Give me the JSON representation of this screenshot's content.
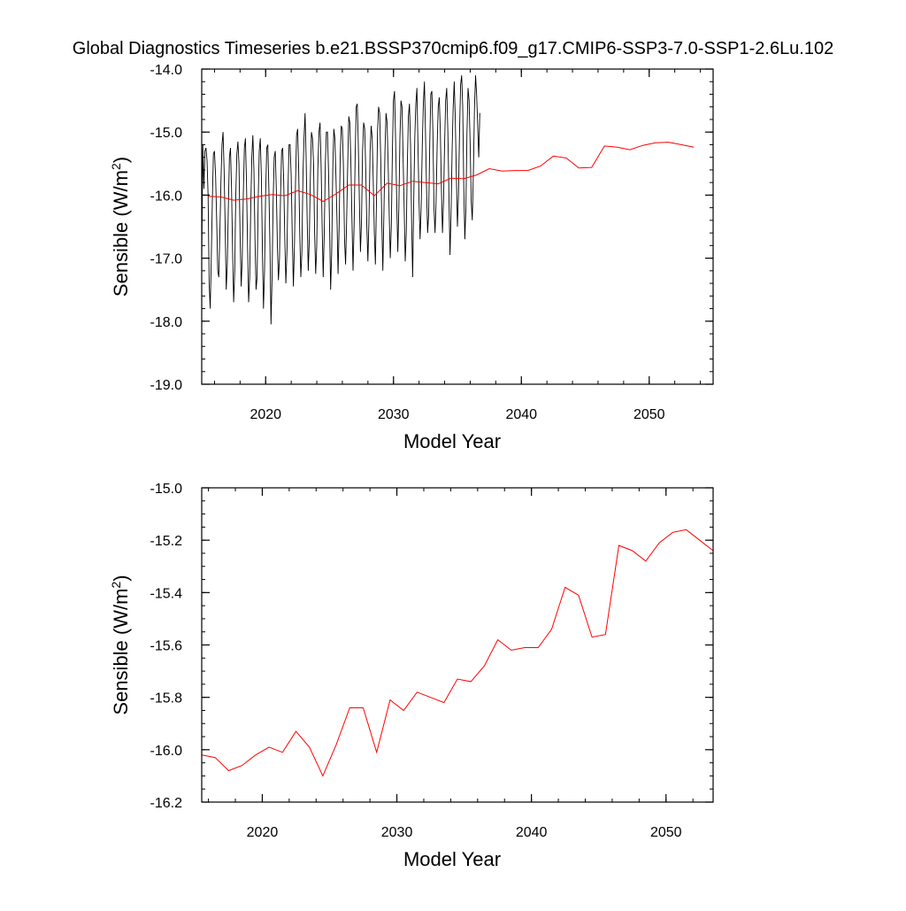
{
  "figure": {
    "title": "Global Diagnostics Timeseries b.e21.BSSP370cmip6.f09_g17.CMIP6-SSP3-7.0-SSP1-2.6Lu.102"
  },
  "colors": {
    "monthly_line": "#000000",
    "annual_line": "#ff0000",
    "axis": "#000000"
  },
  "chart_data": [
    {
      "type": "line",
      "xlabel": "Model Year",
      "ylabel": "Sensible (W/m²)",
      "ylabel_parts": {
        "main": "Sensible (W/m",
        "sup": "2",
        "end": ")"
      },
      "xlim": [
        2015,
        2055
      ],
      "ylim": [
        -19.0,
        -14.0
      ],
      "yticks": [
        -19.0,
        -18.0,
        -17.0,
        -16.0,
        -15.0,
        -14.0
      ],
      "ytick_labels": [
        "-19.0",
        "-18.0",
        "-17.0",
        "-16.0",
        "-15.0",
        "-14.0"
      ],
      "xticks": [
        2020,
        2030,
        2040,
        2050
      ],
      "xtick_labels": [
        "2020",
        "2030",
        "2040",
        "2050"
      ],
      "x_minor_step": 2,
      "y_minor_step": 0.2,
      "grid": false,
      "series": [
        {
          "kind": "monthly",
          "color": "#000000",
          "x_start": 2015.0,
          "x_step": 0.08333,
          "values": [
            -17.05,
            -15.2,
            -15.9,
            -15.3,
            -15.25,
            -15.45,
            -16.0,
            -17.4,
            -17.8,
            -17.0,
            -16.1,
            -15.35,
            -15.3,
            -15.7,
            -16.4,
            -17.2,
            -17.3,
            -16.6,
            -15.8,
            -15.2,
            -15.0,
            -15.6,
            -16.5,
            -17.5,
            -17.1,
            -16.2,
            -15.4,
            -15.25,
            -15.9,
            -16.9,
            -17.7,
            -17.2,
            -16.0,
            -15.35,
            -15.15,
            -15.5,
            -16.6,
            -17.45,
            -17.0,
            -16.0,
            -15.25,
            -15.1,
            -15.8,
            -16.8,
            -17.7,
            -17.3,
            -16.2,
            -15.4,
            -15.05,
            -15.6,
            -16.7,
            -17.5,
            -17.3,
            -16.1,
            -15.3,
            -15.1,
            -15.7,
            -16.9,
            -17.8,
            -17.2,
            -16.0,
            -15.25,
            -15.2,
            -15.9,
            -16.8,
            -18.05,
            -17.3,
            -16.1,
            -15.4,
            -15.3,
            -15.9,
            -16.8,
            -17.35,
            -17.0,
            -16.0,
            -15.3,
            -15.25,
            -15.8,
            -16.7,
            -17.4,
            -16.9,
            -15.9,
            -15.2,
            -15.2,
            -15.7,
            -16.7,
            -17.45,
            -16.8,
            -15.8,
            -15.05,
            -14.95,
            -15.6,
            -16.6,
            -17.3,
            -16.9,
            -15.7,
            -15.1,
            -14.7,
            -15.4,
            -16.4,
            -17.2,
            -16.7,
            -15.7,
            -15.0,
            -15.1,
            -15.5,
            -16.6,
            -17.25,
            -16.8,
            -15.6,
            -15.0,
            -14.85,
            -15.5,
            -16.5,
            -17.3,
            -16.6,
            -15.5,
            -15.0,
            -15.0,
            -15.6,
            -16.5,
            -17.5,
            -16.9,
            -15.6,
            -14.95,
            -15.1,
            -15.7,
            -16.4,
            -17.25,
            -16.5,
            -15.4,
            -14.9,
            -14.95,
            -15.5,
            -16.7,
            -17.1,
            -16.4,
            -15.5,
            -14.75,
            -14.85,
            -15.5,
            -16.4,
            -17.2,
            -16.5,
            -15.4,
            -14.6,
            -14.55,
            -15.2,
            -16.1,
            -16.9,
            -16.4,
            -15.3,
            -14.85,
            -14.95,
            -15.6,
            -16.5,
            -17.05,
            -16.4,
            -15.3,
            -14.9,
            -15.1,
            -15.8,
            -16.6,
            -17.1,
            -16.1,
            -15.0,
            -14.6,
            -14.7,
            -15.4,
            -16.4,
            -17.2,
            -16.3,
            -15.3,
            -14.7,
            -14.85,
            -15.5,
            -16.3,
            -17.0,
            -16.5,
            -15.3,
            -14.5,
            -14.35,
            -15.1,
            -16.1,
            -16.9,
            -16.2,
            -15.1,
            -14.5,
            -14.6,
            -15.4,
            -16.2,
            -17.05,
            -16.6,
            -15.5,
            -14.75,
            -14.55,
            -15.2,
            -16.4,
            -17.3,
            -16.1,
            -15.1,
            -14.55,
            -14.3,
            -15.2,
            -16.1,
            -16.7,
            -16.2,
            -15.2,
            -14.55,
            -14.2,
            -15.0,
            -15.9,
            -16.6,
            -16.3,
            -15.2,
            -14.4,
            -14.35,
            -15.0,
            -16.2,
            -16.6,
            -16.1,
            -15.2,
            -14.6,
            -14.45,
            -15.0,
            -15.9,
            -16.6,
            -16.1,
            -15.2,
            -14.5,
            -14.3,
            -15.0,
            -16.0,
            -16.95,
            -16.3,
            -15.3,
            -14.6,
            -14.2,
            -14.8,
            -15.7,
            -16.5,
            -16.0,
            -15.0,
            -14.25,
            -14.1,
            -14.6,
            -15.9,
            -16.7,
            -16.2,
            -15.0,
            -14.3,
            -14.5,
            -15.2,
            -16.1,
            -16.4,
            -15.6,
            -14.6,
            -14.1,
            -14.4,
            -14.9,
            -15.4,
            -14.7
          ]
        },
        {
          "kind": "annual",
          "color": "#ff0000",
          "x": [
            2015.5,
            2016.5,
            2017.5,
            2018.5,
            2019.5,
            2020.5,
            2021.5,
            2022.5,
            2023.5,
            2024.5,
            2025.5,
            2026.5,
            2027.5,
            2028.5,
            2029.5,
            2030.5,
            2031.5,
            2032.5,
            2033.5,
            2034.5,
            2035.5,
            2036.5,
            2037.5,
            2038.5,
            2039.5,
            2040.5,
            2041.5,
            2042.5,
            2043.5,
            2044.5,
            2045.5,
            2046.5,
            2047.5,
            2048.5,
            2049.5,
            2050.5,
            2051.5,
            2052.5,
            2053.5
          ],
          "values": [
            -16.02,
            -16.03,
            -16.08,
            -16.06,
            -16.02,
            -15.99,
            -16.01,
            -15.93,
            -15.99,
            -16.1,
            -15.98,
            -15.84,
            -15.84,
            -16.01,
            -15.81,
            -15.85,
            -15.78,
            -15.8,
            -15.82,
            -15.73,
            -15.74,
            -15.68,
            -15.58,
            -15.62,
            -15.61,
            -15.61,
            -15.54,
            -15.38,
            -15.41,
            -15.57,
            -15.56,
            -15.22,
            -15.24,
            -15.28,
            -15.21,
            -15.17,
            -15.16,
            -15.2,
            -15.24
          ]
        }
      ]
    },
    {
      "type": "line",
      "xlabel": "Model Year",
      "ylabel": "Sensible (W/m²)",
      "ylabel_parts": {
        "main": "Sensible (W/m",
        "sup": "2",
        "end": ")"
      },
      "xlim": [
        2015.5,
        2053.5
      ],
      "ylim": [
        -16.2,
        -15.0
      ],
      "yticks": [
        -16.2,
        -16.0,
        -15.8,
        -15.6,
        -15.4,
        -15.2,
        -15.0
      ],
      "ytick_labels": [
        "-16.2",
        "-16.0",
        "-15.8",
        "-15.6",
        "-15.4",
        "-15.2",
        "-15.0"
      ],
      "xticks": [
        2020,
        2030,
        2040,
        2050
      ],
      "xtick_labels": [
        "2020",
        "2030",
        "2040",
        "2050"
      ],
      "x_minor_step": 2,
      "y_minor_step": 0.05,
      "grid": false,
      "series": [
        {
          "kind": "annual",
          "color": "#ff0000",
          "x": [
            2015.5,
            2016.5,
            2017.5,
            2018.5,
            2019.5,
            2020.5,
            2021.5,
            2022.5,
            2023.5,
            2024.5,
            2025.5,
            2026.5,
            2027.5,
            2028.5,
            2029.5,
            2030.5,
            2031.5,
            2032.5,
            2033.5,
            2034.5,
            2035.5,
            2036.5,
            2037.5,
            2038.5,
            2039.5,
            2040.5,
            2041.5,
            2042.5,
            2043.5,
            2044.5,
            2045.5,
            2046.5,
            2047.5,
            2048.5,
            2049.5,
            2050.5,
            2051.5,
            2052.5,
            2053.5
          ],
          "values": [
            -16.02,
            -16.03,
            -16.08,
            -16.06,
            -16.02,
            -15.99,
            -16.01,
            -15.93,
            -15.99,
            -16.1,
            -15.98,
            -15.84,
            -15.84,
            -16.01,
            -15.81,
            -15.85,
            -15.78,
            -15.8,
            -15.82,
            -15.73,
            -15.74,
            -15.68,
            -15.58,
            -15.62,
            -15.61,
            -15.61,
            -15.54,
            -15.38,
            -15.41,
            -15.57,
            -15.56,
            -15.22,
            -15.24,
            -15.28,
            -15.21,
            -15.17,
            -15.16,
            -15.2,
            -15.24
          ]
        }
      ]
    }
  ]
}
